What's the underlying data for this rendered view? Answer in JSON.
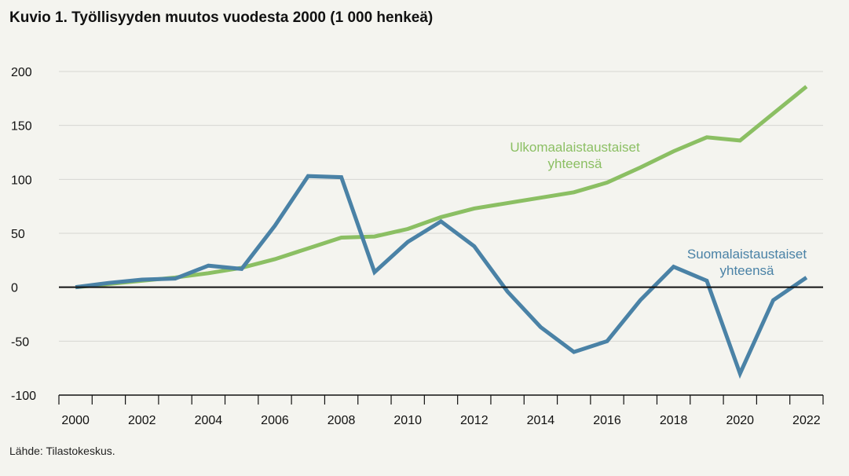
{
  "chart_data": {
    "type": "line",
    "title": "Kuvio 1. Työllisyyden muutos vuodesta 2000 (1 000 henkeä)",
    "xlabel": "",
    "ylabel": "",
    "ylim": [
      -100,
      200
    ],
    "yticks": [
      200,
      150,
      100,
      50,
      0,
      -50,
      -100
    ],
    "x": [
      2000,
      2001,
      2002,
      2003,
      2004,
      2005,
      2006,
      2007,
      2008,
      2009,
      2010,
      2011,
      2012,
      2013,
      2014,
      2015,
      2016,
      2017,
      2018,
      2019,
      2020,
      2021,
      2022
    ],
    "xtick_labels": [
      "2000",
      "2002",
      "2004",
      "2006",
      "2008",
      "2010",
      "2012",
      "2014",
      "2016",
      "2018",
      "2020",
      "2022"
    ],
    "grid": true,
    "series": [
      {
        "name": "Ulkomaalaistaustaiset yhteensä",
        "label_lines": [
          "Ulkomaalaistaustaiset",
          "yhteensä"
        ],
        "color": "#8bbf63",
        "values": [
          0,
          3,
          6,
          9,
          13,
          18,
          26,
          36,
          46,
          47,
          54,
          65,
          73,
          78,
          83,
          88,
          97,
          111,
          126,
          139,
          136,
          161,
          186
        ]
      },
      {
        "name": "Suomalaistaustaiset yhteensä",
        "label_lines": [
          "Suomalaistaustaiset",
          "yhteensä"
        ],
        "color": "#4a82a6",
        "values": [
          0,
          4,
          7,
          8,
          20,
          17,
          57,
          103,
          102,
          14,
          42,
          61,
          38,
          -4,
          -37,
          -60,
          -50,
          -12,
          19,
          6,
          -80,
          -12,
          9
        ]
      }
    ]
  },
  "source": "Lähde: Tilastokeskus."
}
